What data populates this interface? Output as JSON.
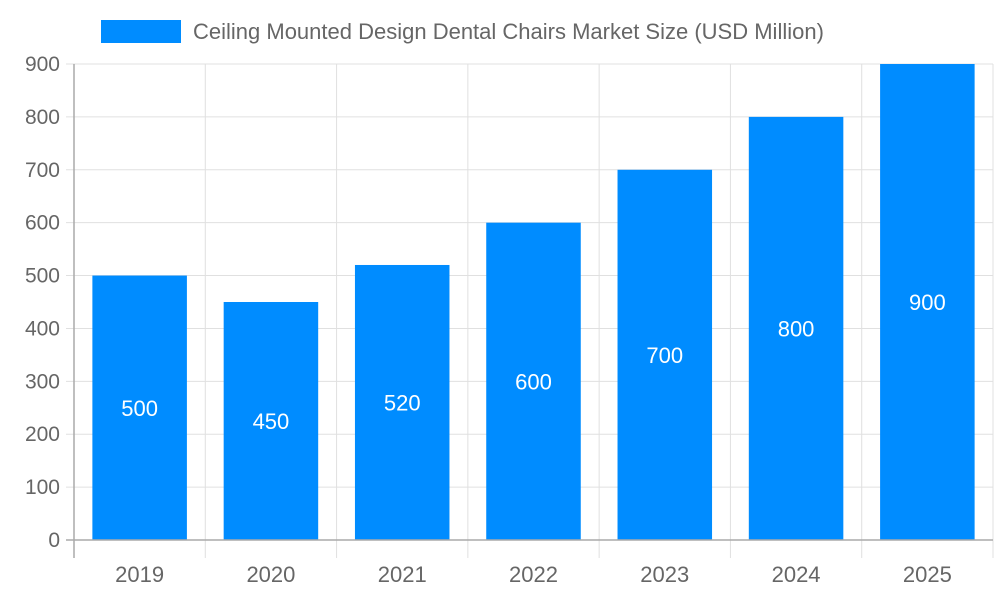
{
  "chart_data": {
    "type": "bar",
    "title": "",
    "xlabel": "",
    "ylabel": "",
    "categories": [
      "2019",
      "2020",
      "2021",
      "2022",
      "2023",
      "2024",
      "2025"
    ],
    "series": [
      {
        "name": "Ceiling Mounted Design Dental Chairs Market Size (USD Million)",
        "values": [
          500,
          450,
          520,
          600,
          700,
          800,
          900
        ],
        "color": "#008CFF"
      }
    ],
    "ylim": [
      0,
      900
    ],
    "yticks": [
      0,
      100,
      200,
      300,
      400,
      500,
      600,
      700,
      800,
      900
    ],
    "grid": true,
    "legend": "top",
    "data_labels": true
  }
}
